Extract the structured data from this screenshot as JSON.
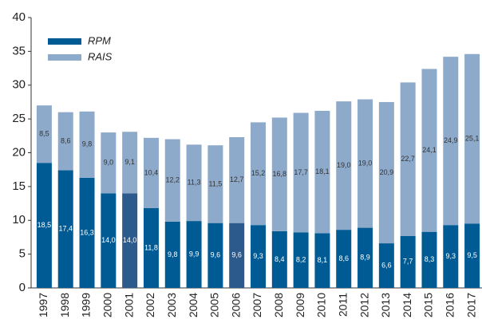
{
  "chart_data": {
    "type": "stacked_bar",
    "categories": [
      "1997",
      "1998",
      "1999",
      "2000",
      "2001",
      "2002",
      "2003",
      "2004",
      "2005",
      "2006",
      "2007",
      "2008",
      "2009",
      "2010",
      "2011",
      "2012",
      "2013",
      "2014",
      "2015",
      "2016",
      "2017"
    ],
    "series": [
      {
        "name": "RPM",
        "color": "#005b94",
        "colors": [
          "#005b94",
          "#005b94",
          "#005b94",
          "#005b94",
          "#2d5a8c",
          "#005b94",
          "#005b94",
          "#005b94",
          "#005b94",
          "#2d5a8c",
          "#005b94",
          "#005b94",
          "#005b94",
          "#005b94",
          "#005b94",
          "#005b94",
          "#005b94",
          "#005b94",
          "#005b94",
          "#005b94",
          "#005b94"
        ],
        "values": [
          18.5,
          17.4,
          16.3,
          14.0,
          14.0,
          11.8,
          9.8,
          9.9,
          9.6,
          9.6,
          9.3,
          8.4,
          8.2,
          8.1,
          8.6,
          8.9,
          6.6,
          7.7,
          8.3,
          9.3,
          9.5
        ],
        "value_labels": [
          "18,5",
          "17,4",
          "16,3",
          "14,0",
          "14,0",
          "11,8",
          "9,8",
          "9,9",
          "9,6",
          "9,6",
          "9,3",
          "8,4",
          "8,2",
          "8,1",
          "8,6",
          "8,9",
          "6,6",
          "7,7",
          "8,3",
          "9,3",
          "9,5"
        ]
      },
      {
        "name": "RAIS",
        "color": "#8eaacb",
        "values": [
          8.5,
          8.6,
          9.8,
          9.0,
          9.1,
          10.4,
          12.2,
          11.3,
          11.5,
          12.7,
          15.2,
          16.8,
          17.7,
          18.1,
          19.0,
          19.0,
          20.9,
          22.7,
          24.1,
          24.9,
          25.1
        ],
        "value_labels": [
          "8,5",
          "8,6",
          "9,8",
          "9,0",
          "9,1",
          "10,4",
          "12,2",
          "11,3",
          "11,5",
          "12,7",
          "15,2",
          "16,8",
          "17,7",
          "18,1",
          "19,0",
          "19,0",
          "20,9",
          "22,7",
          "24,1",
          "24,9",
          "25,1"
        ]
      }
    ],
    "ylim": [
      0,
      40
    ],
    "yticks": [
      0,
      5,
      10,
      15,
      20,
      25,
      30,
      35,
      40
    ],
    "grid": false,
    "legend": "top-left"
  }
}
